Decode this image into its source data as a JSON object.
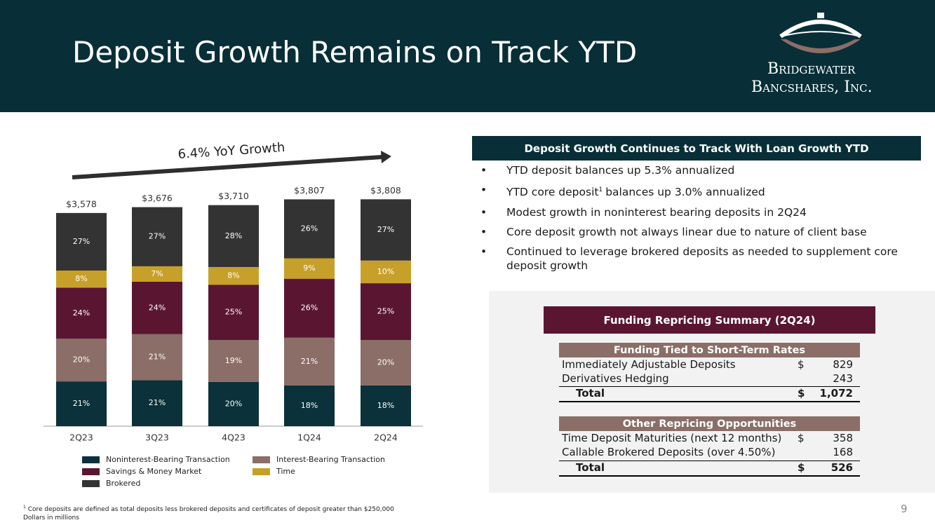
{
  "header": {
    "title": "Deposit Growth Remains on Track YTD",
    "logo": {
      "line1": "Bridgewater",
      "line2": "Bancshares, Inc."
    }
  },
  "chart_data": {
    "type": "bar",
    "stacked": true,
    "annotation": "6.4% YoY Growth",
    "categories": [
      "2Q23",
      "3Q23",
      "4Q23",
      "1Q24",
      "2Q24"
    ],
    "totals": {
      "values": [
        3578,
        3676,
        3710,
        3807,
        3808
      ],
      "value_labels": [
        "$3,578",
        "$3,676",
        "$3,710",
        "$3,807",
        "$3,808"
      ]
    },
    "series": [
      {
        "name": "Noninterest-Bearing Transaction",
        "color": "#0b313a",
        "values": [
          21,
          21,
          20,
          18,
          18
        ],
        "value_labels": [
          "21%",
          "21%",
          "20%",
          "18%",
          "18%"
        ]
      },
      {
        "name": "Interest-Bearing Transaction",
        "color": "#8b6e67",
        "values": [
          20,
          21,
          19,
          21,
          20
        ],
        "value_labels": [
          "20%",
          "21%",
          "19%",
          "21%",
          "20%"
        ]
      },
      {
        "name": "Savings & Money Market",
        "color": "#5a1631",
        "values": [
          24,
          24,
          25,
          26,
          25
        ],
        "value_labels": [
          "24%",
          "24%",
          "25%",
          "26%",
          "25%"
        ]
      },
      {
        "name": "Time",
        "color": "#c7a02a",
        "values": [
          8,
          7,
          8,
          9,
          10
        ],
        "value_labels": [
          "8%",
          "7%",
          "8%",
          "9%",
          "10%"
        ]
      },
      {
        "name": "Brokered",
        "color": "#333333",
        "values": [
          27,
          27,
          28,
          26,
          27
        ],
        "value_labels": [
          "27%",
          "27%",
          "28%",
          "26%",
          "27%"
        ]
      }
    ]
  },
  "highlights": {
    "heading": "Deposit Growth Continues to Track With Loan Growth YTD",
    "bullets": [
      {
        "text": "YTD deposit balances up 5.3% annualized"
      },
      {
        "before": "YTD core deposit",
        "sup": "1",
        "after": "balances up 3.0% annualized"
      },
      {
        "text": "Modest growth in noninterest bearing deposits in 2Q24"
      },
      {
        "text": "Core deposit growth not always linear due to nature of client base"
      },
      {
        "text": "Continued to leverage brokered deposits as needed to supplement core deposit growth"
      }
    ]
  },
  "repricing": {
    "title": "Funding Repricing Summary (2Q24)",
    "sections": [
      {
        "heading": "Funding Tied to Short-Term Rates",
        "rows": [
          {
            "label": "Immediately Adjustable Deposits",
            "currency": "$",
            "amount": "829"
          },
          {
            "label": "Derivatives Hedging",
            "amount": "243"
          }
        ],
        "total": {
          "label": "Total",
          "currency": "$",
          "amount": "1,072"
        }
      },
      {
        "heading": "Other Repricing Opportunities",
        "rows": [
          {
            "label": "Time Deposit Maturities (next 12 months)",
            "currency": "$",
            "amount": "358"
          },
          {
            "label": "Callable Brokered Deposits (over 4.50%)",
            "amount": "168"
          }
        ],
        "total": {
          "label": "Total",
          "currency": "$",
          "amount": "526"
        }
      }
    ]
  },
  "footnotes": {
    "marker": "1",
    "note": "Core deposits are defined as total deposits less brokered deposits and certificates of deposit greater than $250,000",
    "units": "Dollars in millions"
  },
  "page_number": "9"
}
